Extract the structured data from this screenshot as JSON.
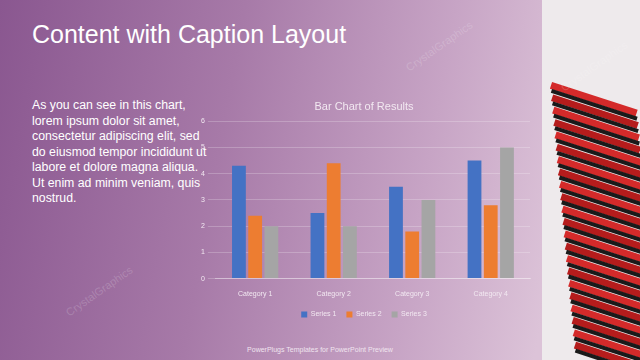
{
  "slide": {
    "title": "Content with Caption Layout",
    "caption": "As you can see in this chart, lorem ipsum dolor sit amet, consectetur adipiscing elit, sed do eiusmod tempor incididunt ut labore et dolore magna aliqua. Ut enim ad minim veniam, quis nostrud.",
    "footer": "PowerPlugs Templates for PowerPoint Preview",
    "watermark": "CrystalGraphics"
  },
  "chart_data": {
    "type": "bar",
    "title": "Bar Chart of Results",
    "categories": [
      "Category 1",
      "Category 2",
      "Category 3",
      "Category 4"
    ],
    "series": [
      {
        "name": "Series 1",
        "color": "#4472c4",
        "values": [
          4.3,
          2.5,
          3.5,
          4.5
        ]
      },
      {
        "name": "Series 2",
        "color": "#ed7d31",
        "values": [
          2.4,
          4.4,
          1.8,
          2.8
        ]
      },
      {
        "name": "Series 3",
        "color": "#a5a5a5",
        "values": [
          2,
          2,
          3,
          5
        ]
      }
    ],
    "ylim": [
      0,
      6
    ],
    "yticks": [
      0,
      1,
      2,
      3,
      4,
      5,
      6
    ],
    "grid": true,
    "legend": "bottom"
  }
}
